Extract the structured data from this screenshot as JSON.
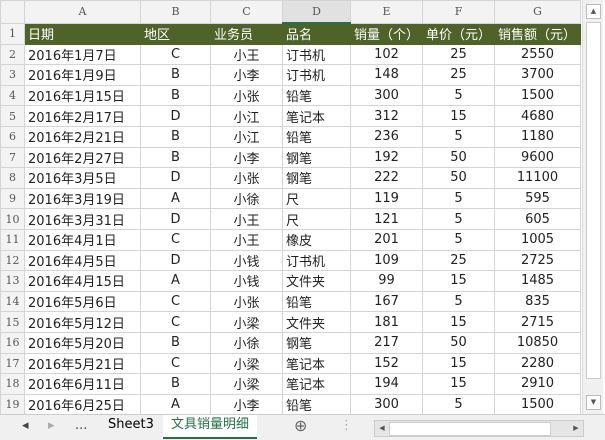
{
  "columns": [
    "A",
    "B",
    "C",
    "D",
    "E",
    "F",
    "G"
  ],
  "headers": [
    "日期",
    "地区",
    "业务员",
    "品名",
    "销量（个）",
    "单价（元）",
    "销售额（元）"
  ],
  "rows": [
    [
      "2016年1月7日",
      "C",
      "小王",
      "订书机",
      "102",
      "25",
      "2550"
    ],
    [
      "2016年1月9日",
      "B",
      "小李",
      "订书机",
      "148",
      "25",
      "3700"
    ],
    [
      "2016年1月15日",
      "B",
      "小张",
      "铅笔",
      "300",
      "5",
      "1500"
    ],
    [
      "2016年2月17日",
      "D",
      "小江",
      "笔记本",
      "312",
      "15",
      "4680"
    ],
    [
      "2016年2月21日",
      "B",
      "小江",
      "铅笔",
      "236",
      "5",
      "1180"
    ],
    [
      "2016年2月27日",
      "B",
      "小李",
      "钢笔",
      "192",
      "50",
      "9600"
    ],
    [
      "2016年3月5日",
      "D",
      "小张",
      "钢笔",
      "222",
      "50",
      "11100"
    ],
    [
      "2016年3月19日",
      "A",
      "小徐",
      "尺",
      "119",
      "5",
      "595"
    ],
    [
      "2016年3月31日",
      "D",
      "小王",
      "尺",
      "121",
      "5",
      "605"
    ],
    [
      "2016年4月1日",
      "C",
      "小王",
      "橡皮",
      "201",
      "5",
      "1005"
    ],
    [
      "2016年4月5日",
      "D",
      "小钱",
      "订书机",
      "109",
      "25",
      "2725"
    ],
    [
      "2016年4月15日",
      "A",
      "小钱",
      "文件夹",
      "99",
      "15",
      "1485"
    ],
    [
      "2016年5月6日",
      "C",
      "小张",
      "铅笔",
      "167",
      "5",
      "835"
    ],
    [
      "2016年5月12日",
      "C",
      "小梁",
      "文件夹",
      "181",
      "15",
      "2715"
    ],
    [
      "2016年5月20日",
      "B",
      "小徐",
      "钢笔",
      "217",
      "50",
      "10850"
    ],
    [
      "2016年5月21日",
      "C",
      "小梁",
      "笔记本",
      "152",
      "15",
      "2280"
    ],
    [
      "2016年6月11日",
      "B",
      "小梁",
      "笔记本",
      "194",
      "15",
      "2910"
    ],
    [
      "2016年6月25日",
      "A",
      "小李",
      "铅笔",
      "300",
      "5",
      "1500"
    ]
  ],
  "sheet_tabs": [
    "Sheet3",
    "文具销量明细"
  ],
  "active_tab": "文具销量明细",
  "nav": {
    "prev": "◂",
    "next": "▸",
    "more": "...",
    "add": "⊕"
  },
  "header_color": "#4f6228"
}
